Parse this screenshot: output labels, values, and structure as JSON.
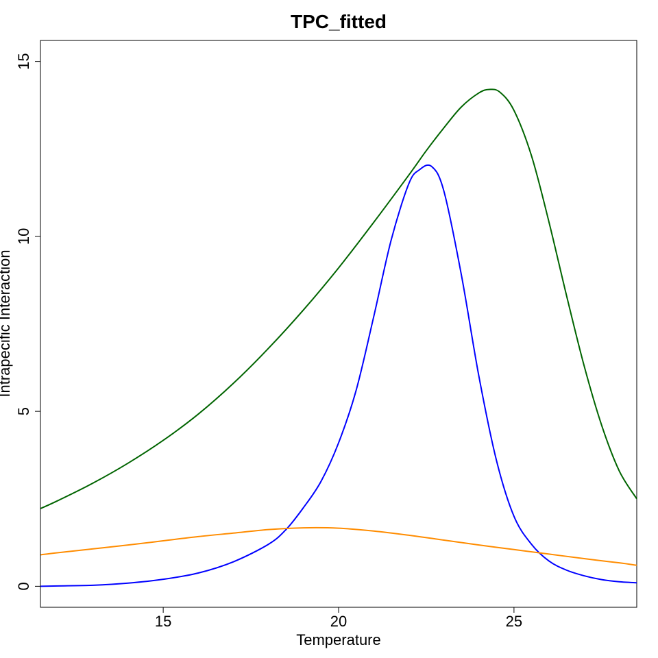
{
  "chart_data": {
    "type": "line",
    "title": "TPC_fitted",
    "xlabel": "Temperature",
    "ylabel": "Intrapecific Interaction",
    "xlim": [
      11.5,
      28.5
    ],
    "ylim": [
      -0.6,
      15.6
    ],
    "xticks": [
      15,
      20,
      25
    ],
    "yticks": [
      0,
      5,
      10,
      15
    ],
    "grid": false,
    "legend": "none",
    "series": [
      {
        "color": "#006400",
        "x": [
          11.5,
          12,
          13,
          14,
          15,
          16,
          17,
          18,
          19,
          20,
          21,
          22,
          22.5,
          23,
          23.5,
          24,
          24.3,
          24.6,
          25,
          25.5,
          26,
          26.5,
          27,
          27.5,
          28,
          28.5
        ],
        "y": [
          2.22,
          2.45,
          2.95,
          3.52,
          4.17,
          4.92,
          5.8,
          6.8,
          7.9,
          9.1,
          10.4,
          11.75,
          12.45,
          13.1,
          13.7,
          14.1,
          14.2,
          14.12,
          13.6,
          12.3,
          10.4,
          8.3,
          6.3,
          4.6,
          3.3,
          2.5
        ]
      },
      {
        "color": "#0000ff",
        "x": [
          11.5,
          12,
          13,
          14,
          15,
          16,
          17,
          18,
          18.5,
          19,
          19.5,
          20,
          20.5,
          21,
          21.5,
          22,
          22.3,
          22.65,
          23,
          23.5,
          24,
          24.5,
          25,
          25.5,
          26,
          26.5,
          27,
          27.5,
          28,
          28.5
        ],
        "y": [
          0.0,
          0.01,
          0.03,
          0.09,
          0.2,
          0.38,
          0.7,
          1.2,
          1.62,
          2.25,
          3.0,
          4.1,
          5.6,
          7.7,
          9.9,
          11.5,
          11.9,
          12.0,
          11.3,
          8.9,
          6.0,
          3.6,
          2.0,
          1.2,
          0.72,
          0.46,
          0.3,
          0.19,
          0.13,
          0.1
        ]
      },
      {
        "color": "#ff8c00",
        "x": [
          11.5,
          12,
          13,
          14,
          15,
          16,
          17,
          18,
          19,
          20,
          21,
          22,
          23,
          24,
          25,
          26,
          27,
          28,
          28.5
        ],
        "y": [
          0.9,
          0.96,
          1.07,
          1.18,
          1.3,
          1.42,
          1.52,
          1.62,
          1.67,
          1.66,
          1.58,
          1.46,
          1.32,
          1.18,
          1.05,
          0.92,
          0.79,
          0.67,
          0.6
        ]
      }
    ]
  }
}
